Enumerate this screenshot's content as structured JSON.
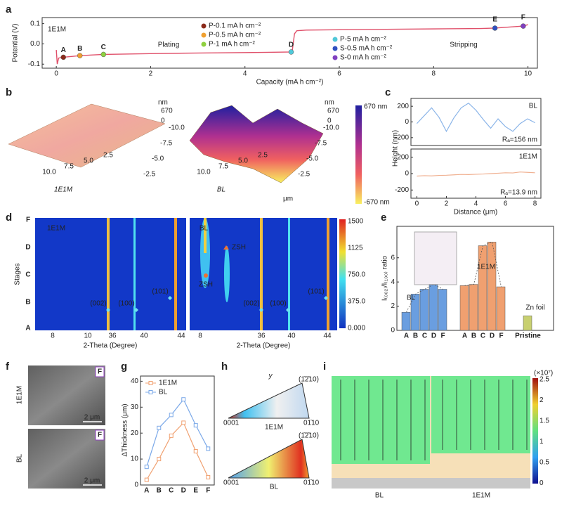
{
  "chart_data": [
    {
      "type": "line",
      "panel": "a",
      "xlabel": "Capacity (mA h cm⁻²)",
      "ylabel": "Potential (V)",
      "xlim": [
        -0.3,
        10.2
      ],
      "ylim": [
        -0.12,
        0.13
      ],
      "xticks": [
        0,
        2,
        4,
        6,
        8,
        10
      ],
      "yticks": [
        -0.1,
        {
          "value": 0,
          "label": "0.0"
        },
        0.1
      ],
      "series": [
        {
          "color": "#e0506a",
          "x": [
            0,
            0.02,
            0.05,
            0.15,
            0.5,
            1,
            2,
            3,
            4,
            5,
            5.05,
            5.1,
            5.3,
            6,
            7,
            8,
            9,
            9.3,
            9.9,
            10
          ],
          "values": [
            -0.03,
            -0.1,
            -0.07,
            -0.066,
            -0.058,
            -0.052,
            -0.048,
            -0.045,
            -0.043,
            -0.04,
            0.05,
            0.065,
            0.068,
            0.07,
            0.072,
            0.074,
            0.076,
            0.078,
            0.088,
            0.095
          ]
        }
      ],
      "points": {
        "labels": [
          "A",
          "B",
          "C",
          "D",
          "E",
          "F"
        ],
        "x": [
          0.15,
          0.5,
          1,
          4.98,
          9.3,
          9.9
        ],
        "values": [
          -0.066,
          -0.058,
          -0.052,
          -0.04,
          0.078,
          0.088
        ],
        "colors": [
          "#8b2a1a",
          "#f0a030",
          "#8fd040",
          "#50c8d8",
          "#3050c0",
          "#8040c0"
        ]
      },
      "legend": [
        {
          "name": "P-0.1 mA h cm⁻²",
          "color": "#8b2a1a"
        },
        {
          "name": "P-0.5 mA h cm⁻²",
          "color": "#f0a030"
        },
        {
          "name": "P-1 mA h cm⁻²",
          "color": "#8fd040"
        },
        {
          "name": "P-5 mA h cm⁻²",
          "color": "#50c8d8"
        },
        {
          "name": "S-0.5 mA h cm⁻²",
          "color": "#3050c0"
        },
        {
          "name": "S-0 mA h cm⁻²",
          "color": "#8040c0"
        }
      ],
      "annotations": [
        {
          "text": "1E1M",
          "color": "#e0a898"
        },
        {
          "text": "Plating",
          "color": "#e04040"
        },
        {
          "text": "Stripping",
          "color": "#f09040"
        }
      ]
    },
    {
      "type": "line",
      "panel": "c",
      "label": "BL",
      "annotation": "Rₐ=156 nm",
      "color": "#8ab4e8",
      "ylabel": "Height (nm)",
      "x": [
        0,
        0.5,
        1,
        1.5,
        2,
        2.5,
        3,
        3.5,
        4,
        4.5,
        5,
        5.5,
        6,
        6.5,
        7,
        7.5,
        8
      ],
      "values": [
        -20,
        80,
        180,
        60,
        -120,
        50,
        180,
        240,
        150,
        30,
        -80,
        40,
        -60,
        -120,
        -20,
        40,
        -10
      ],
      "xlim": [
        -0.4,
        8.4
      ],
      "ylim": [
        -300,
        300
      ],
      "yticks": [
        -200,
        0,
        200
      ]
    },
    {
      "type": "line",
      "label": "1E1M",
      "annotation": "Rₐ=13.9 nm",
      "color": "#f0b090",
      "xlabel": "Distance (μm)",
      "x": [
        0,
        0.5,
        1,
        1.5,
        2,
        2.5,
        3,
        3.5,
        4,
        4.5,
        5,
        5.5,
        6,
        6.5,
        7,
        7.5,
        8
      ],
      "values": [
        -30,
        -25,
        -28,
        -22,
        -20,
        -15,
        -10,
        -12,
        -8,
        -5,
        0,
        5,
        10,
        8,
        20,
        15,
        10
      ],
      "xlim": [
        -0.4,
        8.4
      ],
      "ylim": [
        -300,
        300
      ],
      "yticks": [
        -200,
        0,
        200
      ],
      "xticks": [
        0,
        2,
        4,
        6,
        8
      ]
    },
    {
      "type": "bar",
      "panel": "e",
      "ylabel": "I₍₀₀₂₎/I₍₁₀₀₎ ratio",
      "ylim": [
        0,
        8.6
      ],
      "yticks": [
        0,
        2,
        4,
        6
      ],
      "groups": [
        {
          "name": "BL",
          "color": "#6a9ee0",
          "categories": [
            "A",
            "B",
            "C",
            "D",
            "F"
          ],
          "category_colors": [
            "#d03a2a",
            "#f09020",
            "#8cc040",
            "#40c0d0",
            "#9040c0"
          ],
          "values": [
            1.5,
            3.0,
            3.4,
            3.8,
            3.4
          ]
        },
        {
          "name": "1E1M",
          "color": "#f0a070",
          "categories": [
            "A",
            "B",
            "C",
            "D",
            "F"
          ],
          "category_colors": [
            "#d03a2a",
            "#f09020",
            "#8cc040",
            "#40c0d0",
            "#9040c0"
          ],
          "values": [
            3.7,
            3.8,
            7.0,
            7.3,
            3.6
          ]
        },
        {
          "name": "Zn foil",
          "color": "#c8d070",
          "categories": [
            "Pristine"
          ],
          "category_colors": [
            "#222222"
          ],
          "values": [
            1.2
          ]
        }
      ]
    },
    {
      "type": "line",
      "panel": "g",
      "ylabel": "ΔThickness (μm)",
      "ylim": [
        0,
        42
      ],
      "yticks": [
        0,
        10,
        20,
        30,
        40
      ],
      "categories": [
        "A",
        "B",
        "C",
        "D",
        "E",
        "F"
      ],
      "category_colors": [
        "#d03a2a",
        "#f09020",
        "#8cc040",
        "#40c0d0",
        "#3050c0",
        "#9040c0"
      ],
      "series": [
        {
          "name": "1E1M",
          "color": "#f0a070",
          "values": [
            2,
            10,
            19,
            24,
            13,
            3
          ]
        },
        {
          "name": "BL",
          "color": "#7aa8e8",
          "values": [
            7,
            22,
            27,
            33,
            23,
            14
          ]
        }
      ],
      "legend": "upper left"
    }
  ],
  "panels": {
    "b": {
      "letter": "b",
      "left": {
        "unit": "nm",
        "z": [
          "670",
          "0"
        ],
        "y": [
          "-10.0",
          "-7.5",
          "-5.0",
          "-2.5"
        ],
        "x": [
          "10.0",
          "7.5",
          "5.0",
          "2.5"
        ],
        "name": "1E1M"
      },
      "right": {
        "unit": "nm",
        "z": [
          "670",
          "0"
        ],
        "y": [
          "-10.0",
          "-7.5",
          "-5.0",
          "-2.5"
        ],
        "x": [
          "10.0",
          "7.5",
          "5.0",
          "2.5"
        ],
        "name": "BL",
        "xunit": "μm"
      },
      "colorbar": [
        "670 nm",
        "-670 nm"
      ]
    },
    "d": {
      "letter": "d",
      "ylabel": "Stages",
      "stages": [
        "F",
        "D",
        "C",
        "B",
        "A"
      ],
      "stage_colors": [
        "#9040c0",
        "#40c0d0",
        "#8cc040",
        "#f09020",
        "#d03a2a"
      ],
      "left": {
        "name": "1E1M",
        "xticks": [
          "8",
          "10",
          "36",
          "40",
          "44"
        ],
        "peaks": [
          "(002)",
          "(100)",
          "(101)"
        ],
        "xlabel": "2-Theta (Degree)"
      },
      "right": {
        "name": "BL",
        "xticks": [
          "8",
          "36",
          "40",
          "44"
        ],
        "peaks": [
          "(002)",
          "(100)",
          "(101)"
        ],
        "zsh": [
          "ZSH",
          "ZSH"
        ],
        "xlabel": "2-Theta (Degree)"
      },
      "colorbar": [
        "1500",
        "1125",
        "750.0",
        "375.0",
        "0.000"
      ]
    },
    "f": {
      "letter": "f",
      "tags": [
        "F",
        "F"
      ],
      "scales": [
        "2 μm",
        "2 μm"
      ],
      "names": [
        "1E1M",
        "BL"
      ]
    },
    "h": {
      "letter": "h",
      "axis": "y",
      "names": [
        "1E1M",
        "BL"
      ],
      "corners": [
        "0001",
        "01̄10",
        "(1̄2̄10)"
      ]
    },
    "i": {
      "letter": "i",
      "multiplier": "(×10⁷)",
      "colorbar": [
        "2.5",
        "2",
        "1.5",
        "1",
        "0.5",
        "0"
      ],
      "names": [
        "BL",
        "1E1M"
      ]
    }
  }
}
